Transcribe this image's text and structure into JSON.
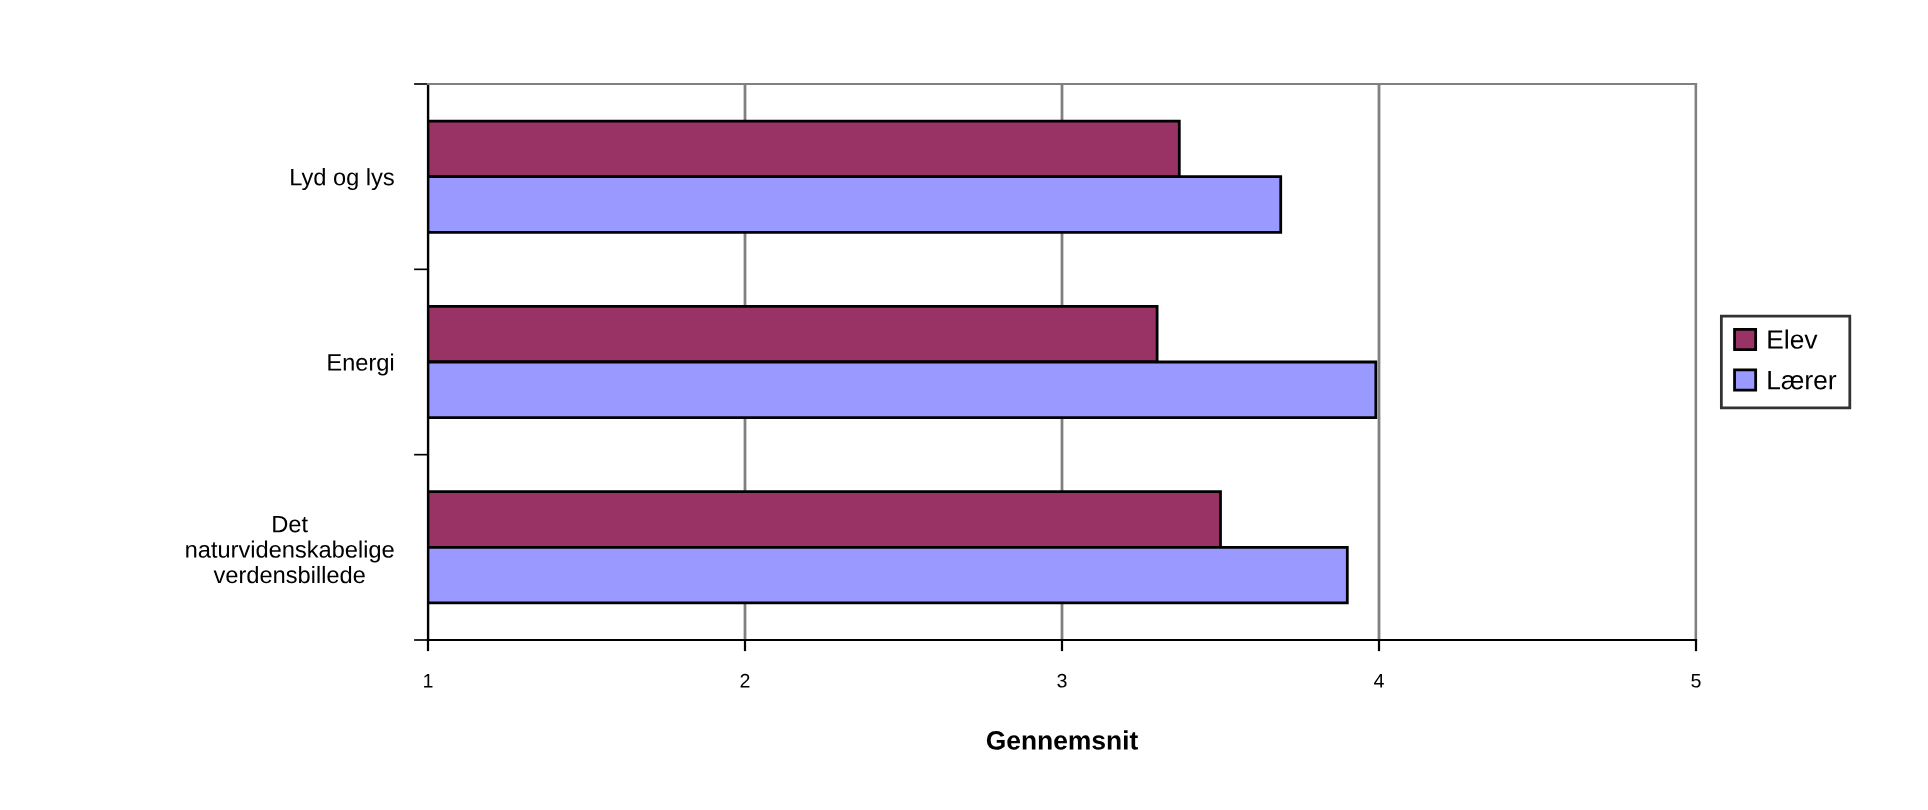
{
  "chart_data": {
    "type": "bar",
    "orientation": "horizontal",
    "categories": [
      "Lyd og lys",
      "Energi",
      "Det naturvidenskabelige verdensbillede"
    ],
    "series": [
      {
        "name": "Elev",
        "color": "#993366",
        "values": [
          3.37,
          3.3,
          3.5
        ]
      },
      {
        "name": "Lærer",
        "color": "#9999ff",
        "values": [
          3.69,
          3.99,
          3.9
        ]
      }
    ],
    "xlabel": "Gennemsnit",
    "xlim": [
      1,
      5
    ],
    "xticks": [
      1,
      2,
      3,
      4,
      5
    ],
    "grid": "x",
    "legend": "right"
  }
}
